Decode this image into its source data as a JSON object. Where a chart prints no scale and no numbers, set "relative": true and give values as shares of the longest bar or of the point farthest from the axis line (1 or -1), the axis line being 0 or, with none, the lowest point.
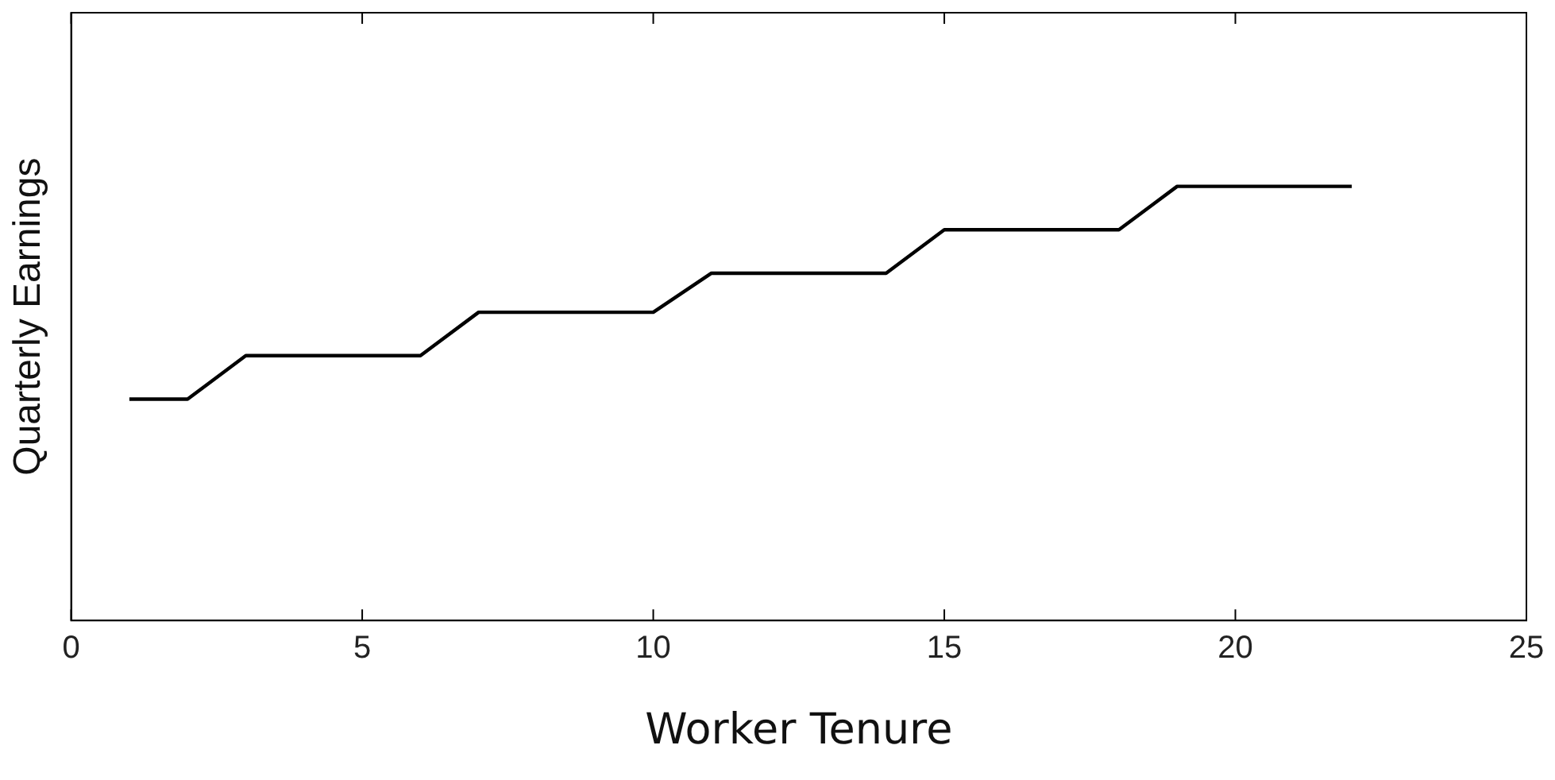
{
  "chart_data": {
    "type": "line",
    "xlabel": "Worker Tenure",
    "ylabel": "Quarterly Earnings",
    "relative": true,
    "tick_labels": "x",
    "grid": false,
    "legend": false,
    "marker": "none",
    "line_style": "solid",
    "x": [
      1,
      2,
      3,
      4,
      5,
      6,
      7,
      8,
      9,
      10,
      11,
      12,
      13,
      14,
      15,
      16,
      17,
      18,
      19,
      20,
      21,
      22
    ],
    "xlim": [
      0,
      25
    ],
    "xticks": [
      0,
      5,
      10,
      15,
      20,
      25
    ],
    "series": [
      {
        "color": "#000000",
        "values": [
          0.51,
          0.51,
          0.61,
          0.61,
          0.61,
          0.61,
          0.71,
          0.71,
          0.71,
          0.71,
          0.8,
          0.8,
          0.8,
          0.8,
          0.9,
          0.9,
          0.9,
          0.9,
          1,
          1,
          1,
          1
        ]
      }
    ]
  }
}
